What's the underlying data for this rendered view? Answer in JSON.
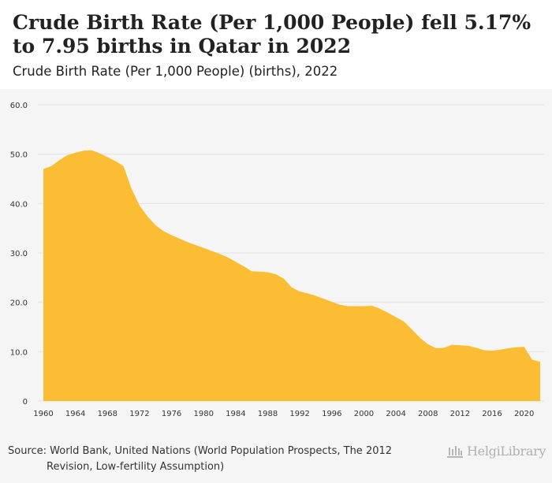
{
  "header": {
    "title": "Crude Birth Rate (Per 1,000 People) fell 5.17% to 7.95 births in Qatar in 2022",
    "subtitle": "Crude Birth Rate (Per 1,000 People) (births), 2022"
  },
  "footer": {
    "source_line1": "Source: World Bank, United Nations (World Population Prospects, The 2012",
    "source_line2": "Revision, Low-fertility Assumption)",
    "logo_text": "HelgiLibrary"
  },
  "colors": {
    "area_fill": "#fbbd33",
    "panel_bg": "#f5f5f5",
    "grid": "#e3e3e3"
  },
  "chart_data": {
    "type": "area",
    "title": "Crude Birth Rate (Per 1,000 People) (births), 2022",
    "xlabel": "",
    "ylabel": "",
    "series": [
      {
        "name": "Crude Birth Rate (Per 1,000 People)",
        "x": [
          1960,
          1961,
          1962,
          1963,
          1964,
          1965,
          1966,
          1967,
          1968,
          1969,
          1970,
          1971,
          1972,
          1973,
          1974,
          1975,
          1976,
          1977,
          1978,
          1979,
          1980,
          1981,
          1982,
          1983,
          1984,
          1985,
          1986,
          1987,
          1988,
          1989,
          1990,
          1991,
          1992,
          1993,
          1994,
          1995,
          1996,
          1997,
          1998,
          1999,
          2000,
          2001,
          2002,
          2003,
          2004,
          2005,
          2006,
          2007,
          2008,
          2009,
          2010,
          2011,
          2012,
          2013,
          2014,
          2015,
          2016,
          2017,
          2018,
          2019,
          2020,
          2021,
          2022
        ],
        "values": [
          47.0,
          47.6,
          48.8,
          49.8,
          50.3,
          50.7,
          50.8,
          50.2,
          49.4,
          48.6,
          47.6,
          43.0,
          39.6,
          37.4,
          35.6,
          34.4,
          33.6,
          32.9,
          32.2,
          31.6,
          31.0,
          30.4,
          29.8,
          29.1,
          28.2,
          27.3,
          26.3,
          26.2,
          26.1,
          25.7,
          24.8,
          23.0,
          22.2,
          21.8,
          21.3,
          20.7,
          20.1,
          19.5,
          19.2,
          19.2,
          19.2,
          19.3,
          18.7,
          17.9,
          17.0,
          16.1,
          14.5,
          12.8,
          11.5,
          10.7,
          10.8,
          11.4,
          11.3,
          11.2,
          10.8,
          10.3,
          10.2,
          10.4,
          10.7,
          10.9,
          11.0,
          8.38,
          7.95
        ]
      }
    ],
    "xticks": [
      1960,
      1964,
      1968,
      1972,
      1976,
      1980,
      1984,
      1988,
      1992,
      1996,
      2000,
      2004,
      2008,
      2012,
      2016,
      2020
    ],
    "yticks": [
      "0",
      "10.0",
      "20.0",
      "30.0",
      "40.0",
      "50.0",
      "60.0"
    ],
    "ylim": [
      0,
      60
    ],
    "xlim": [
      1960,
      2022
    ],
    "grid": true
  }
}
